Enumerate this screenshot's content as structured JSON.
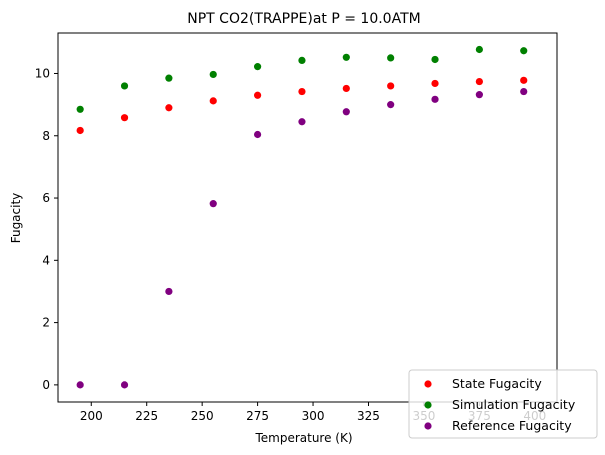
{
  "chart_data": {
    "type": "scatter",
    "title": "NPT CO2(TRAPPE)at P = 10.0ATM",
    "xlabel": "Temperature (K)",
    "ylabel": "Fugacity",
    "xlim": [
      185,
      410
    ],
    "ylim": [
      -0.55,
      11.3
    ],
    "xticks": [
      200,
      225,
      250,
      275,
      300,
      325,
      350,
      375,
      400
    ],
    "yticks": [
      0,
      2,
      4,
      6,
      8,
      10
    ],
    "grid": false,
    "legend_position": "bottom-right",
    "x": [
      195,
      215,
      235,
      255,
      275,
      295,
      315,
      335,
      355,
      375,
      395
    ],
    "series": [
      {
        "name": "State Fugacity",
        "color": "#ff0000",
        "values": [
          8.17,
          8.58,
          8.9,
          9.12,
          9.3,
          9.42,
          9.52,
          9.6,
          9.68,
          9.74,
          9.78
        ]
      },
      {
        "name": "Simulation Fugacity",
        "color": "#008000",
        "values": [
          8.85,
          9.6,
          9.85,
          9.97,
          10.22,
          10.42,
          10.52,
          10.5,
          10.45,
          10.77,
          10.73
        ]
      },
      {
        "name": "Reference Fugacity",
        "color": "#800080",
        "values": [
          0.0,
          0.0,
          3.0,
          5.82,
          8.04,
          8.45,
          8.77,
          9.0,
          9.17,
          9.32,
          9.42
        ]
      }
    ]
  }
}
